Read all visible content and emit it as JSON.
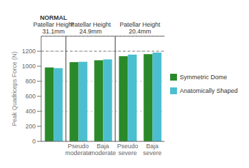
{
  "chart_data": {
    "type": "bar",
    "categories": [
      null,
      "Pseudo\nmoderate",
      "Baja\nmoderate",
      "Pseudo\nsevere",
      "Baja\nsevere"
    ],
    "series": [
      {
        "name": "Symmetric Dome",
        "color": "#2a8a2a",
        "values": [
          985,
          1055,
          1080,
          1135,
          1162
        ]
      },
      {
        "name": "Anatomically Shaped",
        "color": "#4bbfcf",
        "values": [
          975,
          1058,
          1092,
          1155,
          1182
        ]
      }
    ],
    "ylabel": "Peak Quadriceps Force (N)",
    "ylim": [
      0,
      1400
    ],
    "yticks": [
      0,
      200,
      400,
      600,
      800,
      1000,
      1200
    ],
    "grid": true,
    "hline": 1200,
    "sections": [
      {
        "lines": [
          "NORMAL",
          "Patellar Height",
          "31.1mm"
        ],
        "count": 1
      },
      {
        "lines": [
          "Patellar Height",
          "24.9mm"
        ],
        "count": 2
      },
      {
        "lines": [
          "Patellar Height",
          "20.4mm"
        ],
        "count": 2
      }
    ]
  }
}
